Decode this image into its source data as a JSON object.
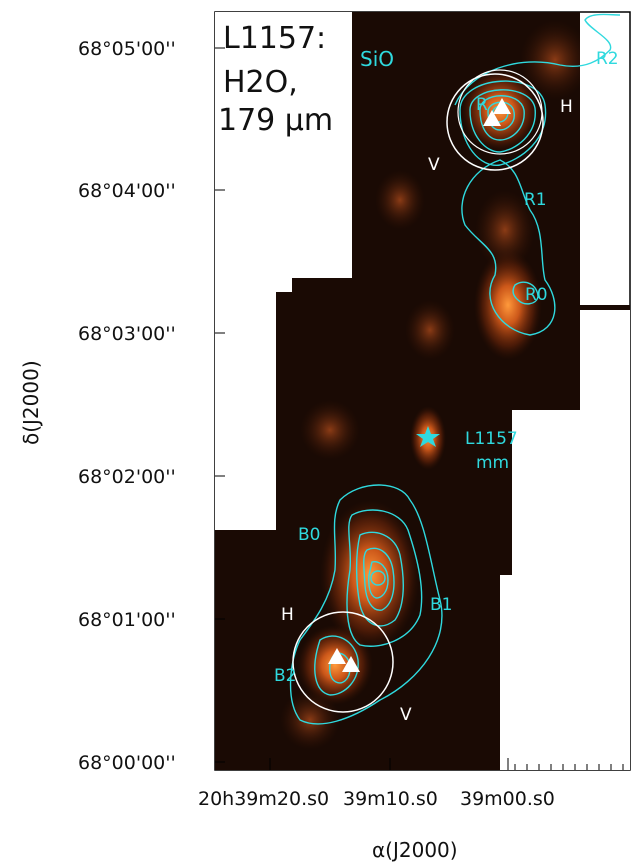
{
  "title": {
    "line1": "L1157:",
    "line2": "H2O,",
    "line3": "179 μm",
    "tracer": "SiO"
  },
  "axes": {
    "xlabel": "α(J2000)",
    "ylabel": "δ(J2000)",
    "yticks": [
      "68°05'00''",
      "68°04'00''",
      "68°03'00''",
      "68°02'00''",
      "68°01'00''",
      "68°00'00''"
    ],
    "xticks": [
      "20h39m20.s0",
      "39m10.s0",
      "39m00.s0"
    ]
  },
  "labels": {
    "R2": "R2",
    "R": "R",
    "R1": "R1",
    "R0": "R0",
    "B0": "B0",
    "B1": "B1",
    "B2": "B2",
    "source_line1": "L1157",
    "source_line2": "mm",
    "H_north": "H",
    "V_north": "V",
    "H_south": "H",
    "V_south": "V"
  },
  "colors": {
    "contour": "#2fd9de",
    "emission_core": "#f07a28",
    "background": "#1a0a04"
  }
}
